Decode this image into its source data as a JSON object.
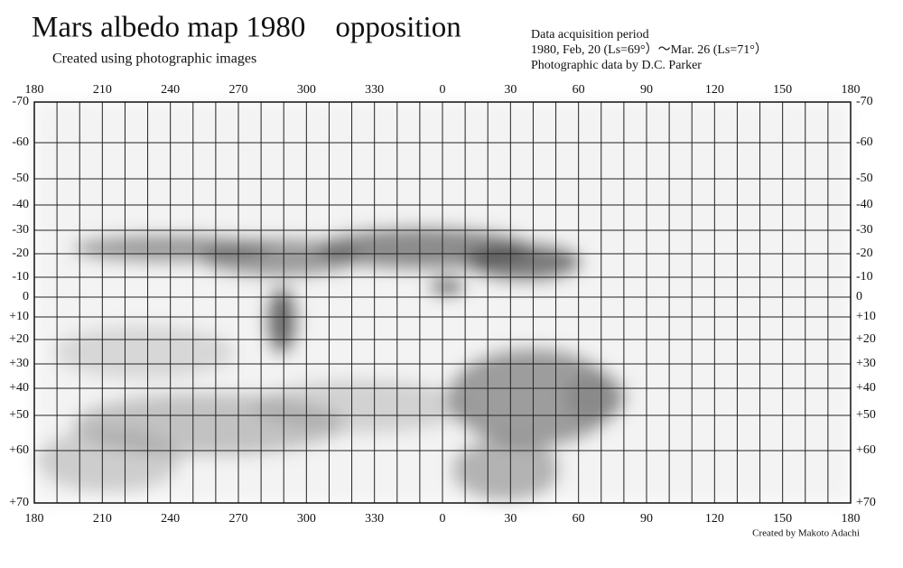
{
  "header": {
    "title": "Mars albedo map 1980　opposition",
    "subtitle": "Created using photographic images"
  },
  "info": {
    "lines": [
      "Data acquisition period",
      "1980, Feb, 20 (Ls=69°）～Mar. 26 (Ls=71°）",
      "Photographic data by D.C. Parker"
    ]
  },
  "map": {
    "longitude_labels": [
      "180",
      "210",
      "240",
      "270",
      "300",
      "330",
      "0",
      "30",
      "60",
      "90",
      "120",
      "150",
      "180"
    ],
    "latitude_labels": [
      "-70",
      "-60",
      "-50",
      "-40",
      "-30",
      "-20",
      "-10",
      "0",
      "+10",
      "+20",
      "+30",
      "+40",
      "+50",
      "+60",
      "+70"
    ]
  },
  "credit": "Created by Makoto Adachi"
}
